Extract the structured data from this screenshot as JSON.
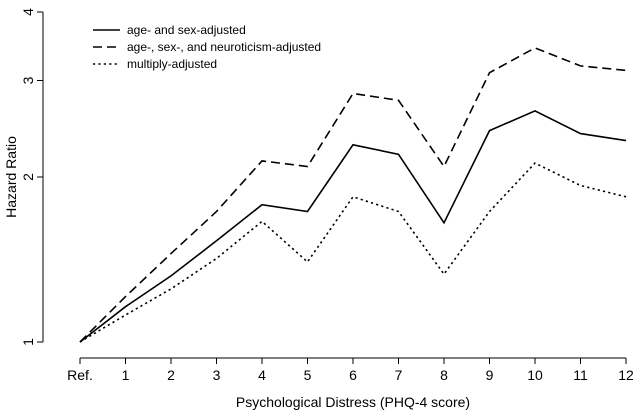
{
  "chart_data": {
    "type": "line",
    "title": "",
    "xlabel": "Psychological Distress (PHQ-4 score)",
    "ylabel": "Hazard Ratio",
    "categories": [
      "Ref.",
      "1",
      "2",
      "3",
      "4",
      "5",
      "6",
      "7",
      "8",
      "9",
      "10",
      "11",
      "12"
    ],
    "y_ticks": [
      "1",
      "2",
      "3",
      "4"
    ],
    "ylim": [
      1,
      4
    ],
    "y_scale": "log",
    "grid": false,
    "legend_position": "top-left",
    "series": [
      {
        "name": "age- and sex-adjusted",
        "line_style": "solid",
        "values": [
          1.0,
          1.16,
          1.32,
          1.53,
          1.78,
          1.73,
          2.29,
          2.2,
          1.65,
          2.43,
          2.64,
          2.4,
          2.33
        ]
      },
      {
        "name": "age-, sex-, and neuroticism-adjusted",
        "line_style": "dashed",
        "values": [
          1.0,
          1.21,
          1.45,
          1.73,
          2.14,
          2.09,
          2.84,
          2.76,
          2.09,
          3.1,
          3.44,
          3.19,
          3.13
        ]
      },
      {
        "name": "multiply-adjusted",
        "line_style": "dotted",
        "values": [
          1.0,
          1.12,
          1.25,
          1.42,
          1.66,
          1.4,
          1.84,
          1.73,
          1.33,
          1.73,
          2.12,
          1.93,
          1.84
        ]
      }
    ],
    "colors": {
      "line": "#000000",
      "background": "#ffffff"
    }
  }
}
